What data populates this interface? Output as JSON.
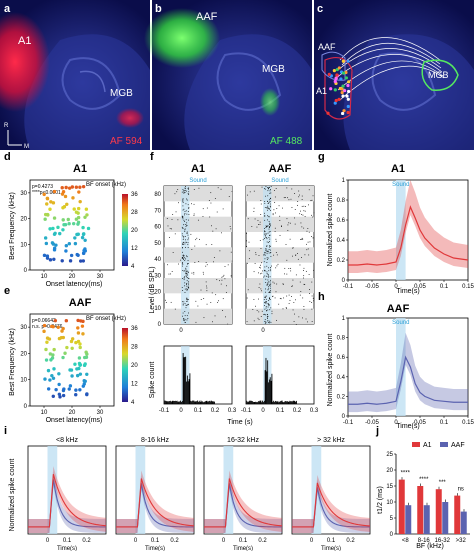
{
  "panels": {
    "a": {
      "letter": "a",
      "labels": [
        "A1",
        "MGB"
      ],
      "tracer": "AF 594",
      "axis_r": "R",
      "axis_m": "M"
    },
    "b": {
      "letter": "b",
      "labels": [
        "AAF",
        "MGB"
      ],
      "tracer": "AF 488"
    },
    "c": {
      "letter": "c",
      "labels": [
        "AAF",
        "A1",
        "MGB"
      ]
    },
    "d": {
      "letter": "d",
      "title": "A1",
      "ylabel": "Best Frequency (kHz)",
      "xlabel": "Onset latency(ms)",
      "stat1": "p=0.4273",
      "stat2": "****p<0.0001",
      "cbar_title": "BF onset (kHz)"
    },
    "e": {
      "letter": "e",
      "title": "AAF",
      "ylabel": "Best Frequency (kHz)",
      "xlabel": "Onset latency(ms)",
      "stat1": "p=0.06642",
      "stat2": "n.s. p=0.3476",
      "cbar_title": "BF onset (kHz)"
    },
    "f": {
      "letter": "f",
      "title_left": "A1",
      "title_right": "AAF",
      "sound": "Sound",
      "ylabel_top": "Level (dB SPL)",
      "ylabel_bottom": "Spike count",
      "xlabel": "Time (s)"
    },
    "g": {
      "letter": "g",
      "title": "A1",
      "sound": "Sound",
      "ylabel": "Normalized spike count",
      "xlabel": "Time(s)"
    },
    "h": {
      "letter": "h",
      "title": "AAF",
      "sound": "Sound",
      "ylabel": "Normalized spike count",
      "xlabel": "Time(s)"
    },
    "i": {
      "letter": "i",
      "ylabel": "Normalized spike count",
      "xlabel": "Time(s)",
      "bins": [
        "<8 kHz",
        "8-16 kHz",
        "16-32 kHz",
        "> 32 kHz"
      ]
    },
    "j": {
      "letter": "j",
      "ylabel": "t1/2 (ms)",
      "xlabel": "BF (kHz)",
      "legend_a1": "A1",
      "legend_aaf": "AAF"
    }
  },
  "colors": {
    "a1": "#e0383a",
    "aaf": "#5b63b0",
    "sound": "#bfe0f2",
    "brain_bg": "#0a0d4a"
  },
  "chart_data": [
    {
      "type": "scatter",
      "panel": "d",
      "title": "A1",
      "xlabel": "Onset latency(ms)",
      "ylabel": "Best Frequency (kHz)",
      "xticks": [
        10,
        20,
        30
      ],
      "yticks": [
        0,
        10,
        20,
        30
      ],
      "xlim": [
        5,
        35
      ],
      "ylim": [
        0,
        35
      ],
      "cbar_ticks": [
        4,
        12,
        20,
        28,
        36
      ]
    },
    {
      "type": "scatter",
      "panel": "e",
      "title": "AAF",
      "xlabel": "Onset latency(ms)",
      "ylabel": "Best Frequency (kHz)",
      "xticks": [
        10,
        20,
        30
      ],
      "yticks": [
        0,
        10,
        20,
        30
      ],
      "xlim": [
        5,
        35
      ],
      "ylim": [
        0,
        35
      ],
      "cbar_ticks": [
        4,
        12,
        20,
        28,
        36
      ]
    },
    {
      "type": "raster",
      "panel": "f",
      "yticks": [
        0,
        10,
        20,
        30,
        40,
        50,
        60,
        70,
        80
      ],
      "xticks": [
        -0.1,
        0,
        0.1,
        0.2,
        0.3
      ]
    },
    {
      "type": "line",
      "panel": "g",
      "title": "A1",
      "xticks": [
        -0.1,
        -0.05,
        0,
        0.05,
        0.1,
        0.15
      ],
      "yticks": [
        0,
        0.2,
        0.4,
        0.6,
        0.8,
        1
      ],
      "x": [
        -0.1,
        -0.08,
        -0.06,
        -0.04,
        -0.02,
        0,
        0.01,
        0.02,
        0.03,
        0.04,
        0.05,
        0.06,
        0.08,
        0.1,
        0.12,
        0.15
      ],
      "y": [
        0.15,
        0.15,
        0.16,
        0.15,
        0.16,
        0.18,
        0.32,
        0.55,
        0.73,
        0.62,
        0.5,
        0.42,
        0.32,
        0.26,
        0.22,
        0.2
      ]
    },
    {
      "type": "line",
      "panel": "h",
      "title": "AAF",
      "xticks": [
        -0.1,
        -0.05,
        0,
        0.05,
        0.1,
        0.15
      ],
      "yticks": [
        0,
        0.2,
        0.4,
        0.6,
        0.8,
        1
      ],
      "x": [
        -0.1,
        -0.08,
        -0.06,
        -0.04,
        -0.02,
        0,
        0.01,
        0.02,
        0.03,
        0.04,
        0.05,
        0.06,
        0.08,
        0.1,
        0.12,
        0.15
      ],
      "y": [
        0.12,
        0.12,
        0.13,
        0.12,
        0.13,
        0.15,
        0.35,
        0.6,
        0.5,
        0.33,
        0.24,
        0.2,
        0.16,
        0.15,
        0.14,
        0.14
      ]
    },
    {
      "type": "bar",
      "panel": "j",
      "categories": [
        "<8",
        "8-16",
        "16-32",
        ">32"
      ],
      "series": [
        {
          "name": "A1",
          "values": [
            17,
            15,
            14,
            12
          ]
        },
        {
          "name": "AAF",
          "values": [
            9,
            9,
            10,
            7
          ]
        }
      ],
      "ylim": [
        0,
        25
      ],
      "yticks": [
        0,
        5,
        10,
        15,
        20,
        25
      ],
      "significance": [
        "****",
        "****",
        "***",
        "ns"
      ]
    }
  ]
}
